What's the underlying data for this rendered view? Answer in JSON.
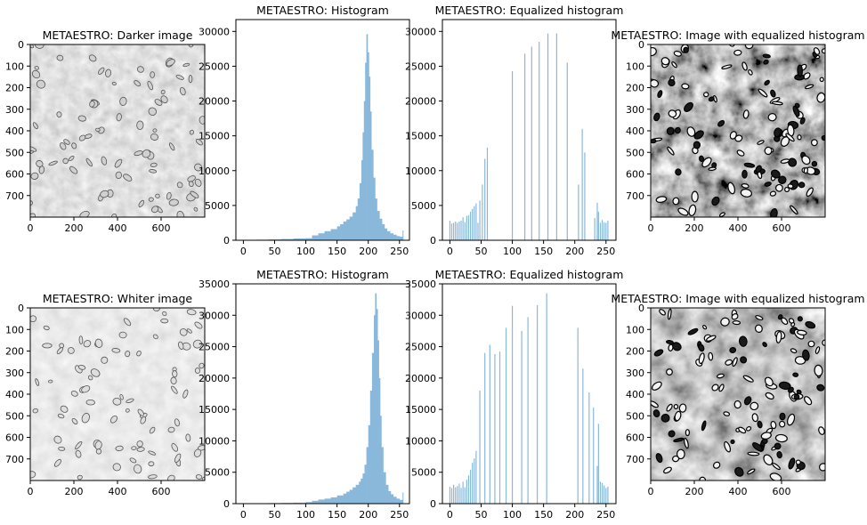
{
  "figure": {
    "rows": [
      {
        "image_left": {
          "title": "METAESTRO: Darker image",
          "xticks": [
            0,
            200,
            400,
            600
          ],
          "yticks": [
            0,
            100,
            200,
            300,
            400,
            500,
            600,
            700
          ]
        },
        "histogram": {
          "title": "METAESTRO: Histogram"
        },
        "equalized_histogram": {
          "title": "METAESTRO: Equalized histogram"
        },
        "image_right": {
          "title": "METAESTRO: Image with equalized histogram",
          "xticks": [
            0,
            200,
            400,
            600
          ],
          "yticks": [
            0,
            100,
            200,
            300,
            400,
            500,
            600,
            700
          ]
        }
      },
      {
        "image_left": {
          "title": "METAESTRO: Whiter image",
          "xticks": [
            0,
            200,
            400,
            600
          ],
          "yticks": [
            0,
            100,
            200,
            300,
            400,
            500,
            600,
            700
          ]
        },
        "histogram": {
          "title": "METAESTRO: Histogram"
        },
        "equalized_histogram": {
          "title": "METAESTRO: Equalized histogram"
        },
        "image_right": {
          "title": "METAESTRO: Image with equalized histogram",
          "xticks": [
            0,
            200,
            400,
            600
          ],
          "yticks": [
            0,
            100,
            200,
            300,
            400,
            500,
            600,
            700
          ]
        }
      }
    ]
  },
  "colors": {
    "bar": "#8ab8da",
    "axis": "#000000",
    "text": "#000000"
  },
  "chart_data": [
    {
      "type": "bar",
      "title": "METAESTRO: Histogram",
      "xlim": [
        -12,
        266
      ],
      "ylim": [
        0,
        30000
      ],
      "xticks": [
        0,
        50,
        100,
        150,
        200,
        250
      ],
      "yticks": [
        0,
        5000,
        10000,
        15000,
        20000,
        25000,
        30000
      ],
      "x": [
        0,
        20,
        40,
        60,
        80,
        100,
        110,
        120,
        130,
        140,
        150,
        155,
        160,
        165,
        170,
        175,
        180,
        183,
        186,
        189,
        191,
        193,
        195,
        197,
        199,
        201,
        203,
        205,
        208,
        211,
        214,
        218,
        222,
        226,
        230,
        235,
        240,
        245,
        250,
        255
      ],
      "values": [
        50,
        80,
        120,
        180,
        260,
        300,
        700,
        1000,
        1300,
        1600,
        2000,
        2300,
        2700,
        3000,
        3400,
        4000,
        4900,
        6000,
        8200,
        11500,
        15500,
        20000,
        25500,
        29600,
        27000,
        23500,
        18500,
        13000,
        9000,
        6000,
        4200,
        3100,
        2300,
        1700,
        1300,
        1000,
        800,
        600,
        500,
        1400
      ]
    },
    {
      "type": "bar",
      "title": "METAESTRO: Equalized histogram",
      "xlim": [
        -12,
        266
      ],
      "ylim": [
        0,
        30000
      ],
      "xticks": [
        0,
        50,
        100,
        150,
        200,
        250
      ],
      "yticks": [
        0,
        5000,
        10000,
        15000,
        20000,
        25000,
        30000
      ],
      "x": [
        0,
        3,
        6,
        9,
        12,
        15,
        18,
        21,
        24,
        27,
        30,
        33,
        36,
        39,
        42,
        45,
        48,
        52,
        56,
        60,
        100,
        120,
        131,
        143,
        157,
        171,
        188,
        206,
        212,
        216,
        232,
        236,
        238,
        241,
        244,
        247,
        250,
        253
      ],
      "values": [
        2800,
        2400,
        2500,
        2700,
        2500,
        2700,
        2800,
        3300,
        2600,
        3500,
        3600,
        4100,
        4500,
        4900,
        5300,
        2500,
        5700,
        8000,
        11700,
        13300,
        24300,
        26800,
        27800,
        28500,
        29700,
        29700,
        25500,
        8000,
        16000,
        12600,
        3200,
        5400,
        4100,
        2500,
        2900,
        2600,
        2500,
        2800
      ]
    },
    {
      "type": "bar",
      "title": "METAESTRO: Histogram",
      "xlim": [
        -12,
        266
      ],
      "ylim": [
        0,
        35000
      ],
      "xticks": [
        0,
        50,
        100,
        150,
        200,
        250
      ],
      "yticks": [
        0,
        5000,
        10000,
        15000,
        20000,
        25000,
        30000,
        35000
      ],
      "x": [
        0,
        20,
        40,
        60,
        80,
        100,
        110,
        120,
        130,
        140,
        150,
        160,
        165,
        170,
        175,
        180,
        185,
        188,
        191,
        194,
        197,
        200,
        203,
        206,
        209,
        211,
        213,
        215,
        217,
        219,
        221,
        224,
        228,
        232,
        236,
        240,
        245,
        250,
        255
      ],
      "values": [
        40,
        60,
        90,
        120,
        160,
        250,
        450,
        650,
        800,
        1000,
        1300,
        1600,
        1900,
        2200,
        2600,
        3000,
        3500,
        4000,
        4800,
        6200,
        9000,
        12500,
        18000,
        24000,
        30000,
        33500,
        31000,
        26000,
        20000,
        14000,
        9000,
        5000,
        3000,
        2000,
        1500,
        1100,
        800,
        600,
        1800
      ]
    },
    {
      "type": "bar",
      "title": "METAESTRO: Equalized histogram",
      "xlim": [
        -12,
        266
      ],
      "ylim": [
        0,
        35000
      ],
      "xticks": [
        0,
        50,
        100,
        150,
        200,
        250
      ],
      "yticks": [
        0,
        5000,
        10000,
        15000,
        20000,
        25000,
        30000,
        35000
      ],
      "x": [
        0,
        3,
        6,
        9,
        12,
        15,
        18,
        21,
        24,
        27,
        30,
        33,
        36,
        39,
        42,
        48,
        56,
        64,
        72,
        80,
        90,
        100,
        115,
        125,
        140,
        155,
        205,
        213,
        223,
        230,
        236,
        238,
        241,
        244,
        247,
        250,
        253
      ],
      "values": [
        2700,
        2500,
        3000,
        2600,
        2800,
        3200,
        2500,
        3500,
        2600,
        3800,
        4500,
        5400,
        6500,
        7200,
        8400,
        18000,
        24000,
        25300,
        23800,
        24200,
        28000,
        31500,
        27500,
        29700,
        31600,
        33500,
        28000,
        21500,
        17700,
        15300,
        6000,
        12700,
        3500,
        3300,
        2900,
        2500,
        2700
      ]
    }
  ]
}
